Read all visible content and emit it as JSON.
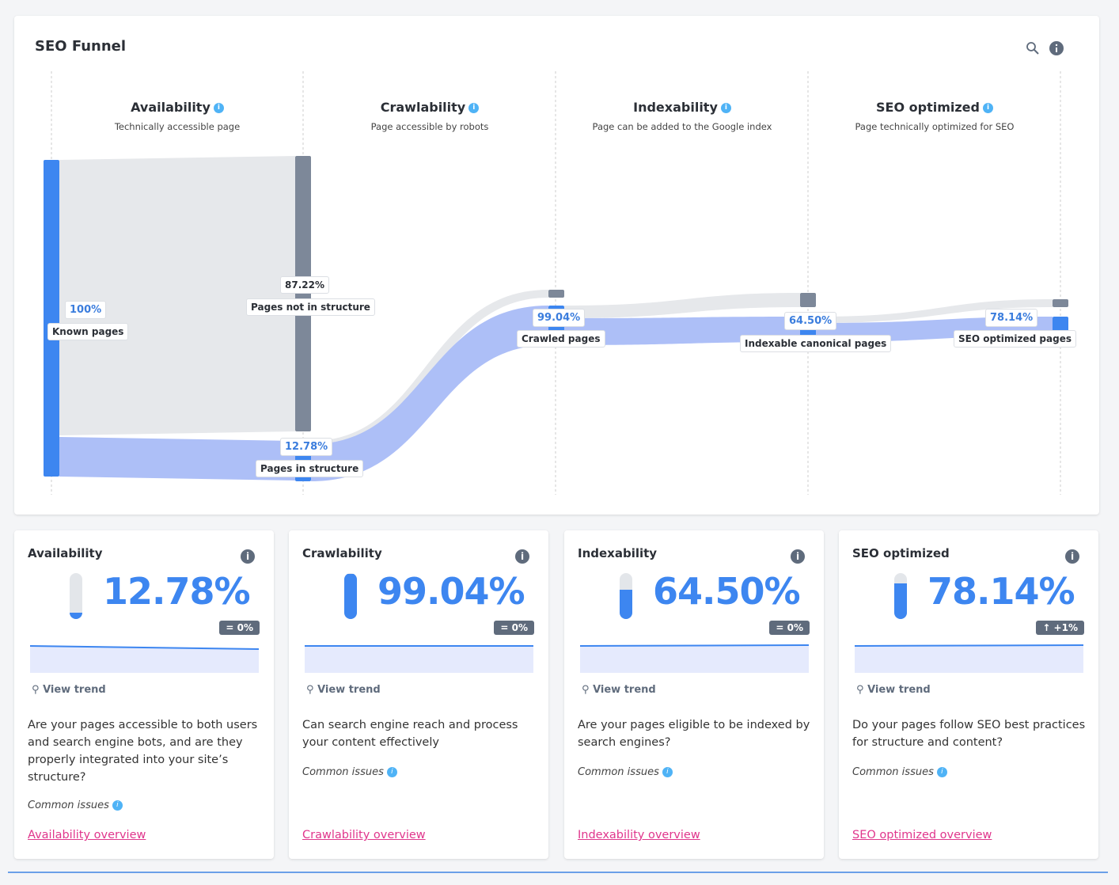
{
  "panel": {
    "title": "SEO Funnel",
    "icons": [
      "zoom-icon",
      "info-icon"
    ]
  },
  "stages": [
    {
      "title": "Availability",
      "subtitle": "Technically accessible page"
    },
    {
      "title": "Crawlability",
      "subtitle": "Page accessible by robots"
    },
    {
      "title": "Indexability",
      "subtitle": "Page can be added to the Google index"
    },
    {
      "title": "SEO optimized",
      "subtitle": "Page technically optimized for SEO"
    }
  ],
  "nodes": {
    "known": {
      "pct": "100%",
      "label": "Known pages"
    },
    "not_in_structure": {
      "pct": "87.22%",
      "label": "Pages not in structure"
    },
    "in_structure": {
      "pct": "12.78%",
      "label": "Pages in structure"
    },
    "crawled": {
      "pct": "99.04%",
      "label": "Crawled pages"
    },
    "indexable": {
      "pct": "64.50%",
      "label": "Indexable canonical pages"
    },
    "seo": {
      "pct": "78.14%",
      "label": "SEO optimized pages"
    }
  },
  "colors": {
    "accent": "#3d86f0",
    "flow_blue": "#adbff7",
    "flow_gray": "#e6e8eb",
    "node_gray": "#7d8899",
    "link": "#e0368c"
  },
  "cards": [
    {
      "title": "Availability",
      "value": "12.78%",
      "fill": 0.1278,
      "delta": "= 0%",
      "trend": "View trend",
      "desc": "Are your pages accessible to both users and search engine bots, and are they properly integrated into your site’s structure?",
      "issues": "Common issues",
      "link": "Availability overview"
    },
    {
      "title": "Crawlability",
      "value": "99.04%",
      "fill": 0.9904,
      "delta": "= 0%",
      "trend": "View trend",
      "desc": "Can search engine reach and process your content effectively",
      "issues": "Common issues",
      "link": "Crawlability overview"
    },
    {
      "title": "Indexability",
      "value": "64.50%",
      "fill": 0.645,
      "delta": "= 0%",
      "trend": "View trend",
      "desc": "Are your pages eligible to be indexed by search engines?",
      "issues": "Common issues",
      "link": "Indexability overview"
    },
    {
      "title": "SEO optimized",
      "value": "78.14%",
      "fill": 0.7814,
      "delta": "↑ +1%",
      "trend": "View trend",
      "desc": "Do your pages follow SEO best practices for structure and content?",
      "issues": "Common issues",
      "link": "SEO optimized overview"
    }
  ]
}
